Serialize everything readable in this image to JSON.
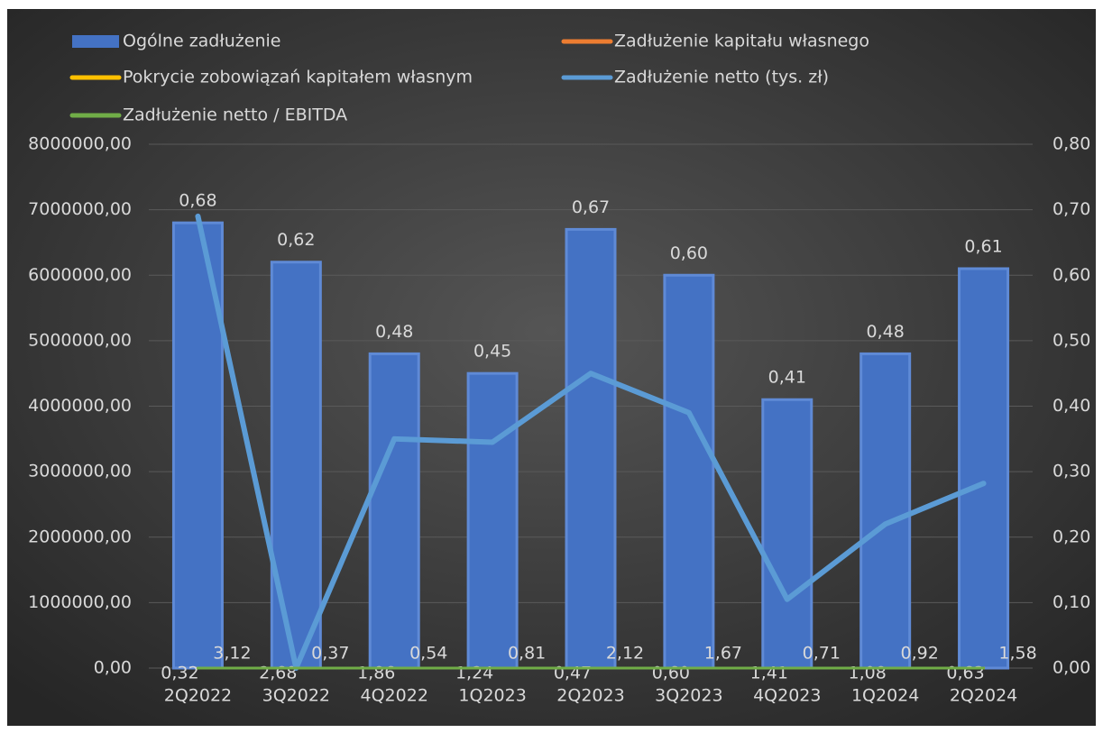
{
  "chart_data": {
    "type": "bar",
    "categories": [
      "2Q2022",
      "3Q2022",
      "4Q2022",
      "1Q2023",
      "2Q2023",
      "3Q2023",
      "4Q2023",
      "1Q2024",
      "2Q2024"
    ],
    "series": [
      {
        "name": "Ogólne zadłużenie",
        "type": "bar",
        "axis": "y2",
        "color": "#4472c4",
        "values": [
          0.68,
          0.62,
          0.48,
          0.45,
          0.67,
          0.6,
          0.41,
          0.48,
          0.61
        ],
        "value_labels": [
          "0,68",
          "0,62",
          "0,48",
          "0,45",
          "0,67",
          "0,60",
          "0,41",
          "0,48",
          "0,61"
        ]
      },
      {
        "name": "Zadłużenie kapitału własnego",
        "type": "line",
        "color": "#ed7d31",
        "values": [
          0.32,
          2.68,
          1.86,
          1.24,
          0.47,
          0.6,
          1.41,
          1.08,
          0.63
        ],
        "value_labels": [
          "0,32",
          "2,68",
          "1,86",
          "1,24",
          "0,47",
          "0,60",
          "1,41",
          "1,08",
          "0,63"
        ]
      },
      {
        "name": "Pokrycie zobowiązań kapitałem własnym",
        "type": "line",
        "color": "#ffc000",
        "values": [
          3.12,
          0.37,
          0.54,
          0.81,
          2.12,
          1.67,
          0.71,
          0.92,
          1.58
        ],
        "value_labels": [
          "3,12",
          "0,37",
          "0,54",
          "0,81",
          "2,12",
          "1,67",
          "0,71",
          "0,92",
          "1,58"
        ]
      },
      {
        "name": "Zadłużenie netto (tys. zł)",
        "type": "line",
        "color": "#5b9bd5",
        "values": [
          6900000,
          0,
          3500000,
          3450000,
          4500000,
          3900000,
          1050000,
          2200000,
          2820000
        ]
      },
      {
        "name": "Zadłużenie netto / EBITDA",
        "type": "line",
        "color": "#70ad47",
        "values": [
          0,
          0,
          0,
          0,
          0,
          0,
          0,
          0,
          0
        ]
      }
    ],
    "ylim": [
      0,
      8000000
    ],
    "yticks": [
      {
        "value": 0,
        "label": "0,00"
      },
      {
        "value": 1000000,
        "label": "1000000,00"
      },
      {
        "value": 2000000,
        "label": "2000000,00"
      },
      {
        "value": 3000000,
        "label": "3000000,00"
      },
      {
        "value": 4000000,
        "label": "4000000,00"
      },
      {
        "value": 5000000,
        "label": "5000000,00"
      },
      {
        "value": 6000000,
        "label": "6000000,00"
      },
      {
        "value": 7000000,
        "label": "7000000,00"
      },
      {
        "value": 8000000,
        "label": "8000000,00"
      }
    ],
    "y2lim": [
      0,
      0.8
    ],
    "y2ticks": [
      {
        "value": 0,
        "label": "0,00"
      },
      {
        "value": 0.1,
        "label": "0,10"
      },
      {
        "value": 0.2,
        "label": "0,20"
      },
      {
        "value": 0.3,
        "label": "0,30"
      },
      {
        "value": 0.4,
        "label": "0,40"
      },
      {
        "value": 0.5,
        "label": "0,50"
      },
      {
        "value": 0.6,
        "label": "0,60"
      },
      {
        "value": 0.7,
        "label": "0,70"
      },
      {
        "value": 0.8,
        "label": "0,80"
      }
    ],
    "grid": true
  }
}
